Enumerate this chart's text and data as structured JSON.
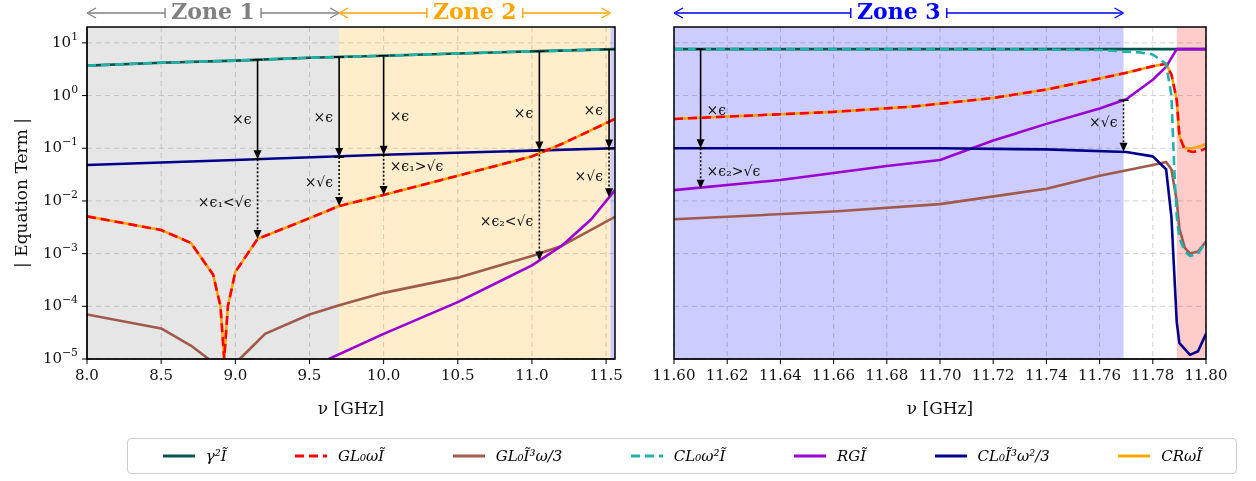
{
  "chart_data": [
    {
      "type": "line",
      "ylabel": "| Equation Term |",
      "xlabel": "ν [GHz]",
      "log": "y",
      "grid": true,
      "marker": "none",
      "legend": "bottom",
      "xlim": [
        8.0,
        11.56
      ],
      "xticks": [
        {
          "value": 8,
          "label": "8.0"
        },
        {
          "value": 8.5,
          "label": "8.5"
        },
        {
          "value": 9,
          "label": "9.0"
        },
        {
          "value": 9.5,
          "label": "9.5"
        },
        {
          "value": 10,
          "label": "10.0"
        },
        {
          "value": 10.5,
          "label": "10.5"
        },
        {
          "value": 11,
          "label": "11.0"
        },
        {
          "value": 11.5,
          "label": "11.5"
        }
      ],
      "ylim": [
        1e-05,
        20
      ],
      "yticks": [
        {
          "value": 10,
          "label": "10$^{1}$"
        },
        {
          "value": 1,
          "label": "10$^{0}$"
        },
        {
          "value": 0.1,
          "label": "10$^{−1}$"
        },
        {
          "value": 0.01,
          "label": "10$^{−2}$"
        },
        {
          "value": 0.001,
          "label": "10$^{−3}$"
        },
        {
          "value": 0.0001,
          "label": "10$^{−4}$"
        },
        {
          "value": 1e-05,
          "label": "10$^{−5}$"
        }
      ],
      "bands": [
        {
          "axis": "x",
          "from": 8.0,
          "to": 9.7,
          "label": "Zone 1",
          "color": "#808080"
        },
        {
          "axis": "x",
          "from": 9.7,
          "to": 11.53,
          "label": "Zone 2",
          "color": "#ffa500"
        },
        {
          "axis": "x",
          "from": 11.53,
          "to": 11.56,
          "color": "#0000ff"
        }
      ],
      "series": [
        {
          "name": "γ²Ĩ",
          "color": "#00564a",
          "line_style": "solid",
          "x": [
            8.0,
            8.5,
            9.0,
            9.5,
            10.0,
            10.5,
            11.0,
            11.56
          ],
          "values": [
            3.7,
            4.2,
            4.6,
            5.2,
            5.7,
            6.3,
            6.9,
            7.6
          ]
        },
        {
          "name": "GL₀ωĨ",
          "color": "#ff0000",
          "line_style": "dashed",
          "x": [
            8.0,
            8.5,
            8.7,
            8.85,
            8.9,
            8.925,
            8.95,
            9.0,
            9.15,
            9.5,
            9.7,
            10.0,
            10.5,
            11.0,
            11.2,
            11.56
          ],
          "values": [
            0.0051,
            0.0028,
            0.0016,
            0.0004,
            0.0001,
            1e-05,
            0.0001,
            0.00045,
            0.0019,
            0.0047,
            0.008,
            0.013,
            0.03,
            0.07,
            0.12,
            0.36
          ]
        },
        {
          "name": "GL₀Ĩ³ω/3",
          "color": "#a05a4c",
          "line_style": "solid",
          "x": [
            8.0,
            8.5,
            8.7,
            8.82,
            8.92,
            9.03,
            9.2,
            9.5,
            9.7,
            10.0,
            10.5,
            11.0,
            11.2,
            11.56
          ],
          "values": [
            7e-05,
            3.8e-05,
            1.8e-05,
            1e-05,
            null,
            1e-05,
            3e-05,
            7e-05,
            0.000105,
            0.00018,
            0.00035,
            0.0009,
            0.0014,
            0.005
          ]
        },
        {
          "name": "CL₀ω²Ĩ",
          "color": "#20b2aa",
          "line_style": "dashed",
          "x": [
            8.0,
            8.5,
            9.0,
            9.5,
            10.0,
            10.5,
            11.0,
            11.56
          ],
          "values": [
            3.7,
            4.2,
            4.6,
            5.2,
            5.7,
            6.3,
            6.9,
            7.6
          ]
        },
        {
          "name": "RGĨ",
          "color": "#9b00d3",
          "line_style": "solid",
          "x": [
            9.63,
            10.0,
            10.5,
            11.0,
            11.2,
            11.4,
            11.56
          ],
          "values": [
            1e-05,
            3e-05,
            0.00012,
            0.0006,
            0.0014,
            0.0045,
            0.016
          ]
        },
        {
          "name": "CL₀Ĩ³ω²/3",
          "color": "#00008b",
          "line_style": "solid",
          "x": [
            8.0,
            9.0,
            10.0,
            11.0,
            11.56
          ],
          "values": [
            0.048,
            0.06,
            0.075,
            0.09,
            0.1
          ]
        },
        {
          "name": "CRωĨ",
          "color": "#ffa500",
          "line_style": "solid",
          "x": [
            8.0,
            8.5,
            8.7,
            8.85,
            8.9,
            8.925,
            8.95,
            9.0,
            9.15,
            9.5,
            9.7,
            10.0,
            10.5,
            11.0,
            11.2,
            11.56
          ],
          "values": [
            0.0051,
            0.0028,
            0.0016,
            0.0004,
            0.0001,
            1e-05,
            0.0001,
            0.00045,
            0.0019,
            0.0047,
            0.008,
            0.013,
            0.03,
            0.07,
            0.12,
            0.36
          ]
        }
      ],
      "annotations": [
        {
          "text": "×ϵ",
          "x": 9.15,
          "y": 0.062
        },
        {
          "text": "×ϵ₁<√ϵ",
          "x": 9.15,
          "y": 0.0019
        },
        {
          "text": "×ϵ",
          "x": 9.7,
          "y": 0.068
        },
        {
          "text": "×√ϵ",
          "x": 9.7,
          "y": 0.008
        },
        {
          "text": "×ϵ",
          "x": 10.0,
          "y": 0.075
        },
        {
          "text": "×ϵ₁>√ϵ",
          "x": 10.0,
          "y": 0.013
        },
        {
          "text": "×ϵ",
          "x": 11.05,
          "y": 0.091
        },
        {
          "text": "×ϵ₂<√ϵ",
          "x": 11.05,
          "y": 0.00074
        },
        {
          "text": "×ϵ",
          "x": 11.52,
          "y": 0.099
        },
        {
          "text": "×√ϵ",
          "x": 11.52,
          "y": 0.0117
        }
      ]
    },
    {
      "type": "line",
      "xlabel": "ν [GHz]",
      "log": "y",
      "grid": true,
      "marker": "none",
      "tick_labels": "x",
      "xlim": [
        11.6,
        11.8
      ],
      "xticks": [
        {
          "value": 11.6,
          "label": "11.60"
        },
        {
          "value": 11.62,
          "label": "11.62"
        },
        {
          "value": 11.64,
          "label": "11.64"
        },
        {
          "value": 11.66,
          "label": "11.66"
        },
        {
          "value": 11.68,
          "label": "11.68"
        },
        {
          "value": 11.7,
          "label": "11.70"
        },
        {
          "value": 11.72,
          "label": "11.72"
        },
        {
          "value": 11.74,
          "label": "11.74"
        },
        {
          "value": 11.76,
          "label": "11.76"
        },
        {
          "value": 11.78,
          "label": "11.78"
        },
        {
          "value": 11.8,
          "label": "11.80"
        }
      ],
      "ylim": [
        1e-05,
        20
      ],
      "yticks": [
        10,
        1,
        0.1,
        0.01,
        0.001,
        0.0001,
        1e-05
      ],
      "bands": [
        {
          "axis": "x",
          "from": 11.6,
          "to": 11.769,
          "label": "Zone 3",
          "color": "#0000ff"
        },
        {
          "axis": "x",
          "from": 11.789,
          "to": 11.8,
          "color": "#ff0000"
        }
      ],
      "series": [
        {
          "color": "#00564a",
          "line_style": "solid",
          "x": [
            11.6,
            11.8
          ],
          "values": [
            7.6,
            7.6
          ]
        },
        {
          "color": "#ff0000",
          "line_style": "dashed",
          "x": [
            11.6,
            11.63,
            11.66,
            11.69,
            11.72,
            11.74,
            11.76,
            11.77,
            11.78,
            11.785,
            11.787,
            11.789,
            11.79,
            11.792,
            11.795,
            11.798,
            11.8
          ],
          "values": [
            0.36,
            0.42,
            0.49,
            0.62,
            0.9,
            1.3,
            2.1,
            2.7,
            3.6,
            4.0,
            2.5,
            0.83,
            0.17,
            0.093,
            0.085,
            0.09,
            0.1
          ]
        },
        {
          "color": "#a05a4c",
          "line_style": "solid",
          "x": [
            11.6,
            11.63,
            11.66,
            11.7,
            11.74,
            11.76,
            11.78,
            11.785,
            11.787,
            11.789,
            11.79,
            11.792,
            11.794,
            11.797,
            11.8
          ],
          "values": [
            0.0045,
            0.0053,
            0.0063,
            0.0087,
            0.017,
            0.03,
            0.048,
            0.055,
            0.04,
            0.01,
            0.003,
            0.0013,
            0.001,
            0.0011,
            0.0017
          ]
        },
        {
          "color": "#20b2aa",
          "line_style": "dashed",
          "x": [
            11.6,
            11.72,
            11.76,
            11.775,
            11.78,
            11.785,
            11.787,
            11.788,
            11.789,
            11.79,
            11.792,
            11.794,
            11.797,
            11.8
          ],
          "values": [
            7.6,
            7.6,
            7.3,
            6.6,
            6.0,
            4.0,
            1.0,
            0.05,
            0.005,
            0.002,
            0.0011,
            0.0009,
            0.001,
            0.0017
          ]
        },
        {
          "color": "#9b00d3",
          "line_style": "solid",
          "x": [
            11.6,
            11.64,
            11.68,
            11.7,
            11.72,
            11.74,
            11.76,
            11.77,
            11.78,
            11.785,
            11.789,
            11.8
          ],
          "values": [
            0.016,
            0.025,
            0.046,
            0.06,
            0.14,
            0.29,
            0.57,
            0.85,
            2.0,
            3.5,
            7.6,
            7.6
          ]
        },
        {
          "color": "#00008b",
          "line_style": "solid",
          "x": [
            11.6,
            11.7,
            11.74,
            11.77,
            11.78,
            11.785,
            11.787,
            11.788,
            11.789,
            11.79,
            11.794,
            11.797,
            11.8
          ],
          "values": [
            0.1,
            0.1,
            0.095,
            0.085,
            0.07,
            0.04,
            0.005,
            0.0005,
            5e-05,
            2e-05,
            1.2e-05,
            1.4e-05,
            3e-05
          ]
        },
        {
          "color": "#ffa500",
          "line_style": "solid",
          "x": [
            11.6,
            11.63,
            11.66,
            11.69,
            11.72,
            11.74,
            11.76,
            11.77,
            11.78,
            11.785,
            11.787,
            11.789,
            11.79,
            11.792,
            11.795,
            11.798,
            11.8
          ],
          "values": [
            0.36,
            0.42,
            0.49,
            0.62,
            0.9,
            1.3,
            2.1,
            2.7,
            3.6,
            4.0,
            2.5,
            0.83,
            0.17,
            0.1,
            0.1,
            0.11,
            0.12
          ]
        }
      ],
      "annotations": [
        {
          "text": "×ϵ",
          "x": 11.61,
          "y": 0.1
        },
        {
          "text": "×ϵ₂>√ϵ",
          "x": 11.61,
          "y": 0.017
        },
        {
          "text": "×√ϵ",
          "x": 11.769,
          "y": 0.086
        }
      ]
    }
  ]
}
